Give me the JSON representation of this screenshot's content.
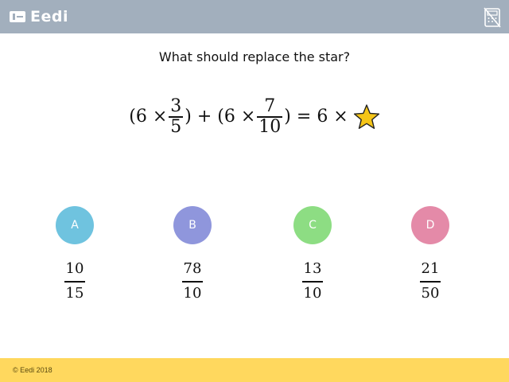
{
  "header": {
    "brand": "Eedi",
    "background": "#a2afbd",
    "logo_icon": "eedi-logo-icon",
    "calculator_icon": "calculator-disabled-icon"
  },
  "question": {
    "prompt": "What should replace the star?",
    "equation": {
      "open1": "(6 ×",
      "frac1": {
        "numerator": "3",
        "denominator": "5"
      },
      "close1": ")",
      "plus": " + ",
      "open2": "(6 ×",
      "frac2": {
        "numerator": "7",
        "denominator": "10"
      },
      "close2": ") = ",
      "rhs": "6 ×",
      "star_icon": "star-icon",
      "star_color": "#f5c518"
    }
  },
  "options": [
    {
      "letter": "A",
      "numerator": "10",
      "denominator": "15",
      "color": "#6fc3df"
    },
    {
      "letter": "B",
      "numerator": "78",
      "denominator": "10",
      "color": "#8f96dc"
    },
    {
      "letter": "C",
      "numerator": "13",
      "denominator": "10",
      "color": "#8ddd83"
    },
    {
      "letter": "D",
      "numerator": "21",
      "denominator": "50",
      "color": "#e48aa8"
    }
  ],
  "footer": {
    "copyright": "© Eedi 2018",
    "background": "#ffd85e"
  }
}
